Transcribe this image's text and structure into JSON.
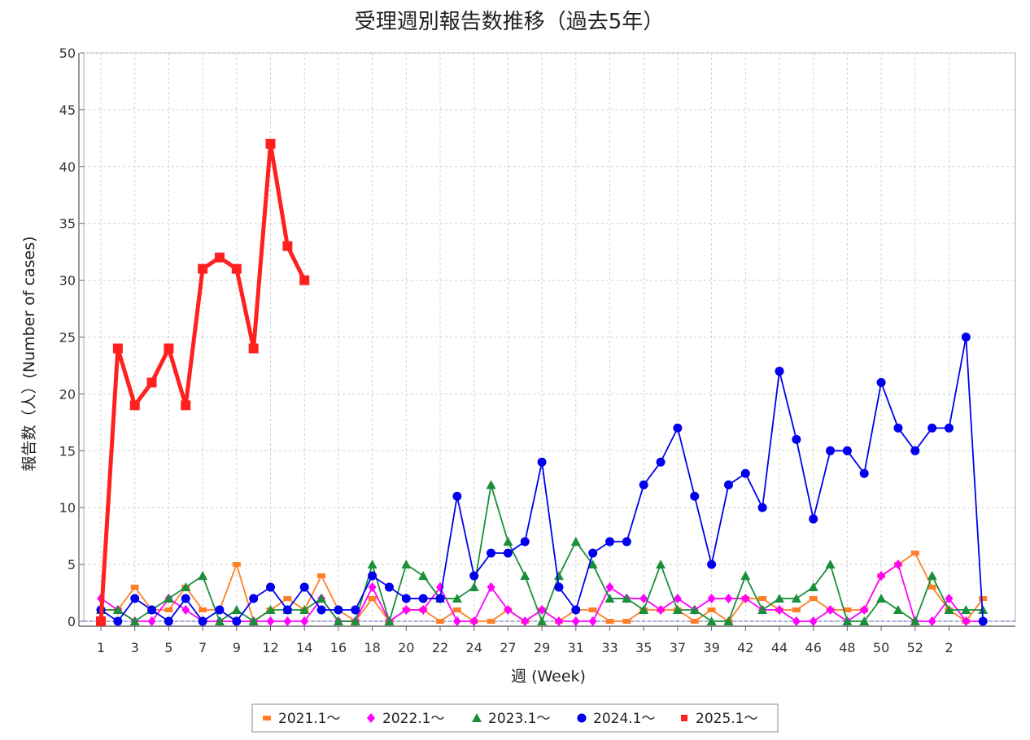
{
  "chart_data": {
    "type": "line",
    "title": "受理週別報告数推移（過去5年）",
    "xlabel": "週 (Week)",
    "ylabel": "報告数（人）(Number of cases)",
    "ylim": [
      0,
      50
    ],
    "yticks": [
      0,
      5,
      10,
      15,
      20,
      25,
      30,
      35,
      40,
      45,
      50
    ],
    "xtick_labels": [
      "1",
      "3",
      "5",
      "7",
      "9",
      "12",
      "14",
      "16",
      "18",
      "20",
      "22",
      "24",
      "27",
      "29",
      "31",
      "33",
      "35",
      "37",
      "39",
      "42",
      "44",
      "46",
      "48",
      "50",
      "52",
      "2"
    ],
    "grid": true,
    "legend_position": "bottom",
    "series": [
      {
        "name": "2021.1～",
        "color": "#ff7f27",
        "marker": "square-small",
        "values": [
          1,
          1,
          3,
          1,
          1,
          3,
          1,
          1,
          5,
          0,
          1,
          2,
          1,
          4,
          1,
          0,
          2,
          0,
          1,
          1,
          0,
          1,
          0,
          0,
          1,
          0,
          1,
          0,
          1,
          1,
          0,
          0,
          1,
          1,
          1,
          0,
          1,
          0,
          2,
          2,
          1,
          1,
          2,
          1,
          1,
          1,
          4,
          5,
          6,
          3,
          1,
          0,
          2
        ]
      },
      {
        "name": "2022.1～",
        "color": "#ff00ff",
        "marker": "diamond",
        "values": [
          2,
          1,
          0,
          0,
          2,
          1,
          0,
          0,
          0,
          0,
          0,
          0,
          0,
          2,
          0,
          0,
          3,
          0,
          1,
          1,
          3,
          0,
          0,
          3,
          1,
          0,
          1,
          0,
          0,
          0,
          3,
          2,
          2,
          1,
          2,
          1,
          2,
          2,
          2,
          1,
          1,
          0,
          0,
          1,
          0,
          1,
          4,
          5,
          0,
          0,
          2,
          0,
          0
        ]
      },
      {
        "name": "2023.1～",
        "color": "#1a8f3a",
        "marker": "triangle",
        "values": [
          1,
          1,
          0,
          1,
          2,
          3,
          4,
          0,
          1,
          0,
          1,
          1,
          1,
          2,
          0,
          0,
          5,
          0,
          5,
          4,
          2,
          2,
          3,
          12,
          7,
          4,
          0,
          4,
          7,
          5,
          2,
          2,
          1,
          5,
          1,
          1,
          0,
          0,
          4,
          1,
          2,
          2,
          3,
          5,
          0,
          0,
          2,
          1,
          0,
          4,
          1,
          1,
          1
        ]
      },
      {
        "name": "2024.1～",
        "color": "#0000ee",
        "marker": "circle",
        "values": [
          1,
          0,
          2,
          1,
          0,
          2,
          0,
          1,
          0,
          2,
          3,
          1,
          3,
          1,
          1,
          1,
          4,
          3,
          2,
          2,
          2,
          11,
          4,
          6,
          6,
          7,
          14,
          3,
          1,
          6,
          7,
          7,
          12,
          14,
          17,
          11,
          5,
          12,
          13,
          10,
          22,
          16,
          9,
          15,
          15,
          13,
          21,
          17,
          15,
          17,
          17,
          25,
          0
        ]
      },
      {
        "name": "2025.1～",
        "color": "#ff2020",
        "marker": "square",
        "bold": true,
        "values": [
          0,
          24,
          19,
          21,
          24,
          19,
          31,
          32,
          31,
          24,
          42,
          33,
          30
        ]
      }
    ]
  }
}
